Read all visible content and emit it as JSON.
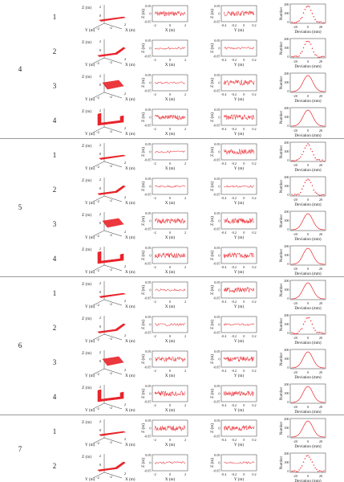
{
  "colors": {
    "trace": "#e8232a",
    "axis": "#333333",
    "separator": "#9a9a9a"
  },
  "groups": [
    {
      "id": "4",
      "rows": [
        {
          "id": "1",
          "shape": "strip",
          "xz": "dense",
          "yz": "dense",
          "hist": "scatter"
        },
        {
          "id": "2",
          "shape": "strip-bend",
          "xz": "sparse",
          "yz": "sparse",
          "hist": "scatter"
        },
        {
          "id": "3",
          "shape": "plate",
          "xz": "sparse",
          "yz": "dense",
          "hist": "line"
        },
        {
          "id": "4",
          "shape": "u-frame",
          "xz": "dense",
          "yz": "dense",
          "hist": "line"
        }
      ]
    },
    {
      "id": "5",
      "rows": [
        {
          "id": "1",
          "shape": "strip",
          "xz": "sparse",
          "yz": "dense",
          "hist": "scatter"
        },
        {
          "id": "2",
          "shape": "strip-bend",
          "xz": "sparse",
          "yz": "sparse",
          "hist": "scatter"
        },
        {
          "id": "3",
          "shape": "plate",
          "xz": "dense",
          "yz": "dense",
          "hist": "line"
        },
        {
          "id": "4",
          "shape": "u-frame",
          "xz": "dense",
          "yz": "dense",
          "hist": "line"
        }
      ]
    },
    {
      "id": "6",
      "rows": [
        {
          "id": "1",
          "shape": "strip",
          "xz": "sparse",
          "yz": "dense",
          "hist": "line"
        },
        {
          "id": "2",
          "shape": "strip-bend",
          "xz": "sparse",
          "yz": "sparse",
          "hist": "scatter"
        },
        {
          "id": "3",
          "shape": "plate",
          "xz": "dense",
          "yz": "dense",
          "hist": "line"
        },
        {
          "id": "4",
          "shape": "u-frame",
          "xz": "dense",
          "yz": "dense",
          "hist": "line"
        }
      ]
    },
    {
      "id": "7",
      "rows": [
        {
          "id": "1",
          "shape": "strip",
          "xz": "dense",
          "yz": "dense",
          "hist": "line"
        },
        {
          "id": "2",
          "shape": "strip-bend",
          "xz": "sparse",
          "yz": "sparse",
          "hist": "scatter"
        }
      ]
    }
  ],
  "labels": {
    "z_m": "Z (m)",
    "x_m": "X (m)",
    "y_m": "Y (m)",
    "number": "Number",
    "deviation": "Deviation (mm)"
  },
  "ticks": {
    "shape_x": [
      "-2",
      "0",
      "2"
    ],
    "shape_y": [
      "-2",
      "0",
      "2"
    ],
    "shape_z": [
      "2",
      "0"
    ],
    "xz_x": [
      "-2",
      "0",
      "2"
    ],
    "xz_z": [
      "0.05",
      "0",
      "-0.05"
    ],
    "yz_y": [
      "-0.4",
      "-0.2",
      "0",
      "0.2"
    ],
    "yz_z": [
      "0.05",
      "0",
      "-0.05"
    ],
    "hist_x": [
      "-20",
      "0",
      "20"
    ],
    "hist_y": [
      "200",
      "100",
      "0"
    ]
  }
}
